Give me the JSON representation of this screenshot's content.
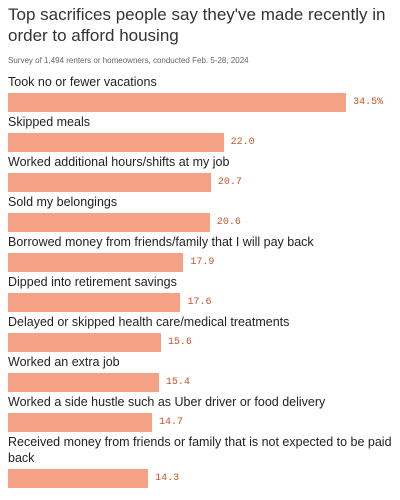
{
  "chart_data": {
    "type": "bar",
    "orientation": "horizontal",
    "title": "Top sacrifices people say they've made recently in order to afford housing",
    "subtitle": "Survey of 1,494 renters or homeowners, conducted Feb. 5-28, 2024",
    "color": "#f4a185",
    "categories": [
      "Took no or fewer vacations",
      "Skipped meals",
      "Worked additional hours/shifts at my job",
      "Sold my belongings",
      "Borrowed money from friends/family that I will pay back",
      "Dipped into retirement savings",
      "Delayed or skipped health care/medical treatments",
      "Worked an extra job",
      "Worked a side hustle such as Uber driver or food delivery",
      "Received money from friends or family that is not expected to be paid back"
    ],
    "values": [
      34.5,
      22.0,
      20.7,
      20.6,
      17.9,
      17.6,
      15.6,
      15.4,
      14.7,
      14.3
    ],
    "value_labels": [
      "34.5%",
      "22.0",
      "20.7",
      "20.6",
      "17.9",
      "17.6",
      "15.6",
      "15.4",
      "14.7",
      "14.3"
    ]
  }
}
